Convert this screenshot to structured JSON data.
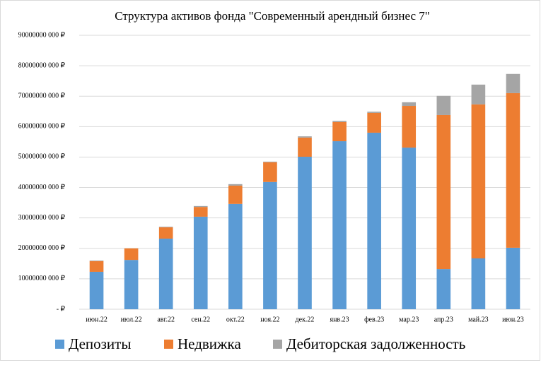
{
  "chart_data": {
    "type": "stacked_bar",
    "title": "Структура активов фонда \"Современный арендный бизнес 7\"",
    "categories": [
      "июн.22",
      "июл.22",
      "авг.22",
      "сен.22",
      "окт.22",
      "ноя.22",
      "дек.22",
      "янв.23",
      "фев.23",
      "мар.23",
      "апр.23",
      "май.23",
      "июн.23"
    ],
    "series": [
      {
        "name": "Депозиты",
        "color": "#5b9bd5",
        "values": [
          12300000000,
          16200000000,
          23200000000,
          30400000000,
          34600000000,
          41800000000,
          50100000000,
          55200000000,
          58000000000,
          53100000000,
          13200000000,
          16700000000,
          20200000000
        ]
      },
      {
        "name": "Недвижка",
        "color": "#ed7d31",
        "values": [
          3500000000,
          3800000000,
          3700000000,
          3200000000,
          6000000000,
          6500000000,
          6300000000,
          6300000000,
          6500000000,
          13700000000,
          50600000000,
          50600000000,
          50800000000
        ]
      },
      {
        "name": "Дебиторская задолженность",
        "color": "#a5a5a5",
        "values": [
          200000000,
          0,
          200000000,
          300000000,
          500000000,
          200000000,
          400000000,
          400000000,
          400000000,
          1200000000,
          6300000000,
          6500000000,
          6300000000
        ]
      }
    ],
    "ylim": [
      0,
      90000000000
    ],
    "yticks": [
      {
        "value": 0,
        "label": "-  ₽"
      },
      {
        "value": 10000000000,
        "label": "10000000 000 ₽"
      },
      {
        "value": 20000000000,
        "label": "20000000 000 ₽"
      },
      {
        "value": 30000000000,
        "label": "30000000 000 ₽"
      },
      {
        "value": 40000000000,
        "label": "40000000 000 ₽"
      },
      {
        "value": 50000000000,
        "label": "50000000 000 ₽"
      },
      {
        "value": 60000000000,
        "label": "60000000 000 ₽"
      },
      {
        "value": 70000000000,
        "label": "70000000 000 ₽"
      },
      {
        "value": 80000000000,
        "label": "80000000 000 ₽"
      },
      {
        "value": 90000000000,
        "label": "90000000 000 ₽"
      }
    ],
    "grid": true
  }
}
